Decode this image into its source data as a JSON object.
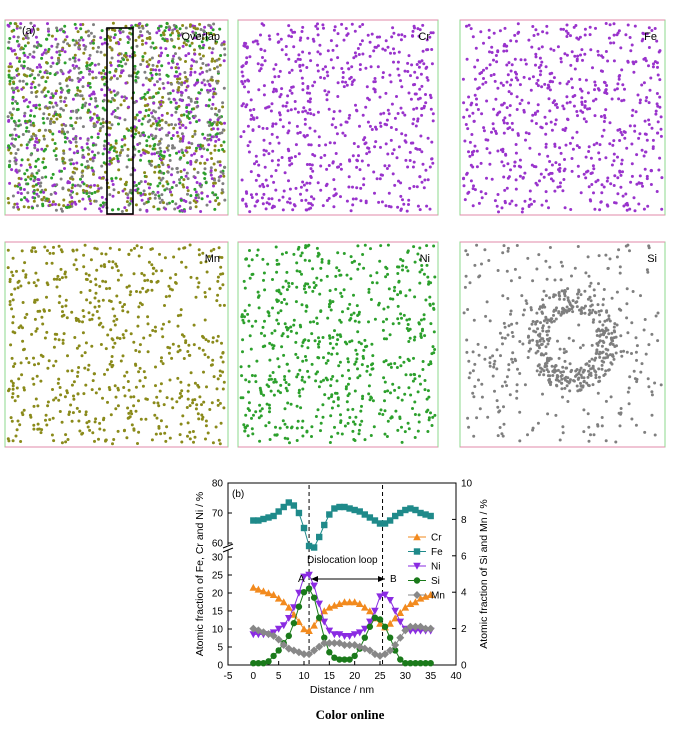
{
  "panel_a": {
    "label": "(a)",
    "maps": [
      {
        "name": "Overlap",
        "color": "mixed",
        "cluster": "none"
      },
      {
        "name": "Cr",
        "color": "#9933cc",
        "cluster": "none"
      },
      {
        "name": "Fe",
        "color": "#9933cc",
        "cluster": "none"
      },
      {
        "name": "Mn",
        "color": "#8a8a1a",
        "cluster": "none"
      },
      {
        "name": "Ni",
        "color": "#2ca02c",
        "cluster": "none"
      },
      {
        "name": "Si",
        "color": "#7f7f7f",
        "cluster": "loop"
      }
    ],
    "overlap_colors": [
      "#9933cc",
      "#2ca02c",
      "#8a8a1a",
      "#7f7f7f"
    ]
  },
  "panel_b": {
    "label": "(b)",
    "annotation_loop": "Dislocation loop",
    "marker_a": "A",
    "marker_b": "B"
  },
  "caption": "Color online",
  "chart_data": {
    "type": "line",
    "xlabel": "Distance / nm",
    "ylabel_left": "Atomic fraction of Fe, Cr and Ni / %",
    "ylabel_right": "Atomic fraction of Si and Mn / %",
    "xlim": [
      -5,
      40
    ],
    "xticks": [
      -5,
      0,
      5,
      10,
      15,
      20,
      25,
      30,
      35,
      40
    ],
    "ylim_left": [
      0,
      80
    ],
    "yticks_left": [
      0,
      5,
      10,
      15,
      20,
      25,
      30,
      60,
      70,
      80
    ],
    "ylim_right": [
      0,
      10
    ],
    "yticks_right": [
      0,
      2,
      4,
      6,
      8,
      10
    ],
    "axis_break": "left axis broken between 30 and 55",
    "vlines": [
      11,
      25.5
    ],
    "legend_position": "right",
    "x": [
      0,
      1,
      2,
      3,
      4,
      5,
      6,
      7,
      8,
      9,
      10,
      11,
      12,
      13,
      14,
      15,
      16,
      17,
      18,
      19,
      20,
      21,
      22,
      23,
      24,
      25,
      26,
      27,
      28,
      29,
      30,
      31,
      32,
      33,
      34,
      35
    ],
    "series": [
      {
        "name": "Cr",
        "axis": "left",
        "marker": "triangle-up",
        "color": "#f28a1e",
        "values": [
          21.5,
          21,
          20.5,
          20,
          19.5,
          18.5,
          17.5,
          16,
          14,
          12,
          10,
          9.5,
          11,
          13,
          15,
          16,
          16.5,
          17,
          17.5,
          17.5,
          17.5,
          17,
          16,
          15,
          13,
          11.5,
          10.5,
          11.5,
          13,
          14.5,
          16,
          17,
          17.5,
          18.5,
          19,
          19.5
        ]
      },
      {
        "name": "Fe",
        "axis": "left",
        "marker": "square",
        "color": "#1f8a8a",
        "values": [
          67.5,
          67.5,
          68,
          68.5,
          69,
          70.5,
          72,
          73.5,
          72.5,
          70,
          65,
          59,
          58.5,
          62,
          66,
          69.5,
          71.5,
          72,
          72,
          71.5,
          71,
          70.5,
          69.5,
          68.5,
          67.5,
          66.5,
          66.5,
          67.5,
          69,
          70,
          71,
          71.5,
          71,
          70,
          69.5,
          69
        ]
      },
      {
        "name": "Ni",
        "axis": "left",
        "marker": "triangle-down",
        "color": "#8a2be2",
        "values": [
          8.5,
          8.5,
          8.5,
          8.5,
          9,
          10,
          11,
          13,
          16,
          20,
          24.5,
          25,
          22,
          17,
          12,
          9.5,
          8.5,
          8.5,
          8,
          8,
          8.5,
          9,
          10,
          12,
          15,
          19,
          19.5,
          18,
          15,
          12,
          10,
          9.5,
          9.5,
          9.5,
          9.5,
          9.5
        ]
      },
      {
        "name": "Si",
        "axis": "right",
        "marker": "circle",
        "color": "#1a7a1a",
        "values": [
          0.1,
          0.1,
          0.1,
          0.2,
          0.5,
          0.8,
          1.2,
          1.6,
          2.3,
          3.2,
          4.0,
          4.2,
          3.7,
          2.6,
          1.5,
          0.7,
          0.4,
          0.3,
          0.3,
          0.3,
          0.5,
          0.9,
          1.5,
          2.1,
          2.6,
          2.5,
          2.1,
          1.5,
          0.8,
          0.3,
          0.1,
          0.1,
          0.1,
          0.1,
          0.1,
          0.1
        ]
      },
      {
        "name": "Mn",
        "axis": "right",
        "marker": "diamond",
        "color": "#888888",
        "values": [
          2.0,
          1.9,
          1.8,
          1.7,
          1.6,
          1.4,
          1.1,
          0.9,
          0.8,
          0.7,
          0.6,
          0.6,
          0.8,
          1.0,
          1.2,
          1.2,
          1.2,
          1.2,
          1.1,
          1.1,
          1.1,
          1.0,
          0.9,
          0.8,
          0.6,
          0.5,
          0.6,
          0.8,
          1.1,
          1.5,
          1.9,
          2.1,
          2.1,
          2.1,
          2.0,
          2.0
        ]
      }
    ]
  }
}
